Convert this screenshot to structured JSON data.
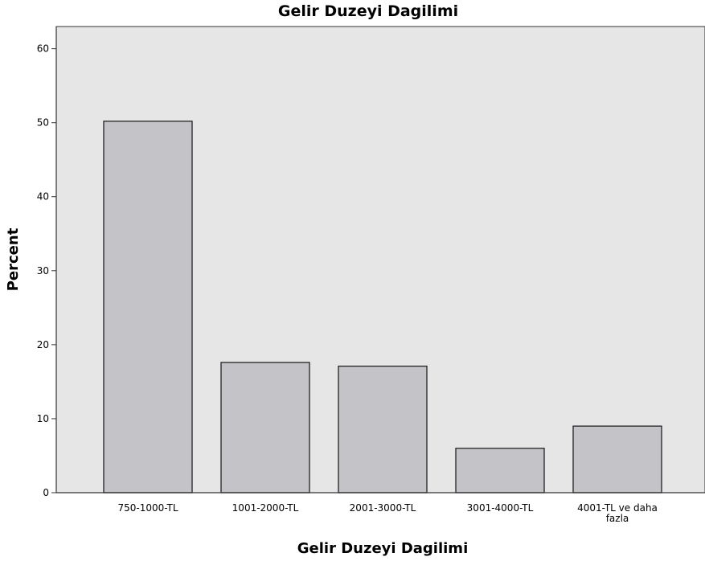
{
  "chart_data": {
    "type": "bar",
    "title": "Gelir Duzeyi Dagilimi",
    "xlabel": "Gelir Duzeyi Dagilimi",
    "ylabel": "Percent",
    "categories": [
      [
        "750-1000-TL"
      ],
      [
        "1001-2000-TL"
      ],
      [
        "2001-3000-TL"
      ],
      [
        "3001-4000-TL"
      ],
      [
        "4001-TL ve daha",
        "fazla"
      ]
    ],
    "values": [
      50.2,
      17.6,
      17.1,
      6.0,
      9.0
    ],
    "ylim": [
      0,
      63
    ],
    "yticks": [
      0,
      10,
      20,
      30,
      40,
      50,
      60
    ],
    "grid": false,
    "legend": "none",
    "colors": {
      "plot_background": "#e6e6e6",
      "bar_fill": "#c4c4c8",
      "bar_stroke": "#222222",
      "axis": "#333333"
    }
  }
}
